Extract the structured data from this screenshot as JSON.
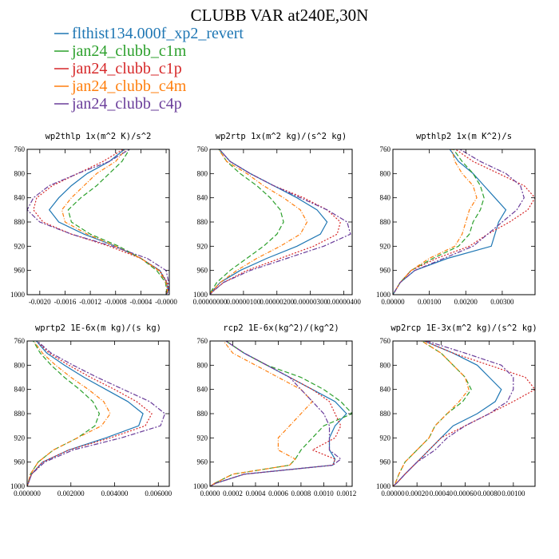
{
  "figure": {
    "title": "CLUBB VAR at240E,30N"
  },
  "colors": {
    "flthist134.000f_xp2_revert": "#1f77b4",
    "jan24_clubb_c1m": "#2ca02c",
    "jan24_clubb_c1p": "#d62728",
    "jan24_clubb_c4m": "#ff7f0e",
    "jan24_clubb_c4p": "#6a3d9a"
  },
  "legend": [
    {
      "name": "flthist134.000f_xp2_revert",
      "color": "#1f77b4"
    },
    {
      "name": "jan24_clubb_c1m",
      "color": "#2ca02c"
    },
    {
      "name": "jan24_clubb_c1p",
      "color": "#d62728"
    },
    {
      "name": "jan24_clubb_c4m",
      "color": "#ff7f0e"
    },
    {
      "name": "jan24_clubb_c4p",
      "color": "#6a3d9a"
    }
  ],
  "chart_data": [
    {
      "type": "line",
      "title": "wp2thlp   1x(m^2 K)/s^2",
      "y_axis": "pressure (reversed)",
      "ylim": [
        760,
        1000
      ],
      "yticks": [
        760,
        800,
        840,
        880,
        920,
        960,
        1000
      ],
      "xlim": [
        -0.0022,
        5e-05
      ],
      "xticks": [
        -0.002,
        -0.0016,
        -0.0012,
        -0.0008,
        -0.0004,
        0.0
      ],
      "xtick_labels": [
        "-0.0020",
        "-0.0016",
        "-0.0012",
        "-0.0008",
        "-0.0004",
        "-0.0000"
      ],
      "y": [
        755,
        780,
        800,
        820,
        840,
        860,
        880,
        900,
        920,
        940,
        960,
        980,
        995,
        1000
      ],
      "series": [
        {
          "name": "flthist134.000f_xp2_revert",
          "values": [
            -0.0006,
            -0.0009,
            -0.00125,
            -0.0015,
            -0.0017,
            -0.00185,
            -0.0017,
            -0.0013,
            -0.0008,
            -0.0004,
            -0.0001,
            1e-05,
            3e-05,
            0.0
          ]
        },
        {
          "name": "jan24_clubb_c1m",
          "values": [
            -0.00055,
            -0.0007,
            -0.0009,
            -0.0011,
            -0.00135,
            -0.00155,
            -0.0015,
            -0.0012,
            -0.00075,
            -0.0004,
            -0.00015,
            -1e-05,
            1e-05,
            0.0
          ]
        },
        {
          "name": "jan24_clubb_c1p",
          "values": [
            -0.0006,
            -0.001,
            -0.0014,
            -0.0018,
            -0.00205,
            -0.0021,
            -0.00195,
            -0.0015,
            -0.0009,
            -0.0004,
            -0.0001,
            2e-05,
            3e-05,
            0.0
          ]
        },
        {
          "name": "jan24_clubb_c4m",
          "values": [
            -0.0006,
            -0.0008,
            -0.0011,
            -0.0013,
            -0.0015,
            -0.00165,
            -0.0016,
            -0.00125,
            -0.0008,
            -0.0004,
            -0.00012,
            0.0,
            2e-05,
            0.0
          ]
        },
        {
          "name": "jan24_clubb_c4p",
          "values": [
            -0.0005,
            -0.0009,
            -0.0014,
            -0.00185,
            -0.0021,
            -0.0022,
            -0.002,
            -0.0015,
            -0.00085,
            -0.0003,
            0.0,
            4e-05,
            4e-05,
            0.0
          ]
        }
      ]
    },
    {
      "type": "line",
      "title": "wp2rtp   1x(m^2 kg)/(s^2 kg)",
      "y_axis": "pressure (reversed)",
      "ylim": [
        760,
        1000
      ],
      "yticks": [
        760,
        800,
        840,
        880,
        920,
        960,
        1000
      ],
      "xlim": [
        0.0,
        4.25e-06
      ],
      "xticks": [
        0.0,
        1e-06,
        2e-06,
        3e-06,
        4e-06
      ],
      "xtick_labels": [
        "0.00000000",
        "0.00000100",
        "0.00000200",
        "0.00000300",
        "0.00000400"
      ],
      "y": [
        755,
        780,
        800,
        820,
        840,
        860,
        880,
        900,
        920,
        940,
        960,
        980,
        995,
        1000
      ],
      "series": [
        {
          "name": "flthist134.000f_xp2_revert",
          "values": [
            2e-07,
            6e-07,
            1.2e-06,
            1.9e-06,
            2.6e-06,
            3.2e-06,
            3.5e-06,
            3.3e-06,
            2.6e-06,
            1.7e-06,
            9e-07,
            3e-07,
            5e-08,
            0.0
          ]
        },
        {
          "name": "jan24_clubb_c1m",
          "values": [
            2e-07,
            5e-07,
            9e-07,
            1.4e-06,
            1.8e-06,
            2.1e-06,
            2.2e-06,
            2e-06,
            1.6e-06,
            1.1e-06,
            6e-07,
            2e-07,
            3e-08,
            0.0
          ]
        },
        {
          "name": "jan24_clubb_c1p",
          "values": [
            2e-07,
            6e-07,
            1.2e-06,
            1.9e-06,
            2.8e-06,
            3.5e-06,
            3.9e-06,
            3.8e-06,
            3.1e-06,
            2.1e-06,
            1.1e-06,
            4e-07,
            7e-08,
            0.0
          ]
        },
        {
          "name": "jan24_clubb_c4m",
          "values": [
            2e-07,
            5e-07,
            1.1e-06,
            1.6e-06,
            2.2e-06,
            2.7e-06,
            2.9e-06,
            2.7e-06,
            2.1e-06,
            1.4e-06,
            8e-07,
            3e-07,
            5e-08,
            0.0
          ]
        },
        {
          "name": "jan24_clubb_c4p",
          "values": [
            2e-07,
            6e-07,
            1.2e-06,
            1.9e-06,
            2.7e-06,
            3.5e-06,
            4.1e-06,
            4.2e-06,
            3.4e-06,
            2.3e-06,
            1.2e-06,
            4e-07,
            8e-08,
            0.0
          ]
        }
      ]
    },
    {
      "type": "line",
      "title": "wpthlp2   1x(m K^2)/s",
      "y_axis": "pressure (reversed)",
      "ylim": [
        760,
        1000
      ],
      "yticks": [
        760,
        800,
        840,
        880,
        920,
        960,
        1000
      ],
      "xlim": [
        0.0,
        0.0039
      ],
      "xticks": [
        0.0,
        0.001,
        0.002,
        0.003
      ],
      "xtick_labels": [
        "0.00000",
        "0.00100",
        "0.00200",
        "0.00300"
      ],
      "y": [
        755,
        780,
        800,
        820,
        840,
        860,
        880,
        900,
        920,
        940,
        960,
        980,
        995,
        1000
      ],
      "series": [
        {
          "name": "flthist134.000f_xp2_revert",
          "values": [
            0.0015,
            0.0018,
            0.0022,
            0.0025,
            0.0028,
            0.0031,
            0.0029,
            0.0028,
            0.0027,
            0.0015,
            0.0006,
            0.0002,
            5e-05,
            0.0
          ]
        },
        {
          "name": "jan24_clubb_c1m",
          "values": [
            0.0016,
            0.0019,
            0.0022,
            0.0024,
            0.0025,
            0.0024,
            0.0022,
            0.0021,
            0.0018,
            0.0011,
            0.0005,
            0.0002,
            5e-05,
            0.0
          ]
        },
        {
          "name": "jan24_clubb_c1p",
          "values": [
            0.0016,
            0.0022,
            0.0029,
            0.0036,
            0.0039,
            0.0037,
            0.0032,
            0.0026,
            0.0021,
            0.0012,
            0.0005,
            0.0002,
            5e-05,
            0.0
          ]
        },
        {
          "name": "jan24_clubb_c4m",
          "values": [
            0.0016,
            0.0017,
            0.0019,
            0.0022,
            0.0023,
            0.0021,
            0.002,
            0.0019,
            0.0017,
            0.001,
            0.0005,
            0.0002,
            5e-05,
            0.0
          ]
        },
        {
          "name": "jan24_clubb_c4p",
          "values": [
            0.0017,
            0.0024,
            0.0031,
            0.0035,
            0.0036,
            0.0034,
            0.003,
            0.0026,
            0.0022,
            0.0014,
            0.0006,
            0.0002,
            5e-05,
            0.0
          ]
        }
      ]
    },
    {
      "type": "line",
      "title": "wprtp2   1E-6x(m kg)/(s kg)",
      "y_axis": "pressure (reversed)",
      "ylim": [
        760,
        1000
      ],
      "yticks": [
        760,
        800,
        840,
        880,
        920,
        960,
        1000
      ],
      "xlim": [
        0.0,
        0.0065
      ],
      "xticks": [
        0.0,
        0.002,
        0.004,
        0.006
      ],
      "xtick_labels": [
        "0.000000",
        "0.002000",
        "0.004000",
        "0.006000"
      ],
      "y": [
        755,
        780,
        800,
        820,
        840,
        860,
        880,
        900,
        920,
        940,
        960,
        980,
        995,
        1000
      ],
      "series": [
        {
          "name": "flthist134.000f_xp2_revert",
          "values": [
            0.0003,
            0.0009,
            0.0017,
            0.0026,
            0.0036,
            0.0046,
            0.0053,
            0.0051,
            0.0036,
            0.0019,
            0.0007,
            0.0002,
            5e-05,
            0.0
          ]
        },
        {
          "name": "jan24_clubb_c1m",
          "values": [
            0.0002,
            0.0006,
            0.0011,
            0.0017,
            0.0024,
            0.003,
            0.0033,
            0.0031,
            0.0023,
            0.0012,
            0.0005,
            0.00015,
            4e-05,
            0.0
          ]
        },
        {
          "name": "jan24_clubb_c1p",
          "values": [
            0.0003,
            0.001,
            0.0019,
            0.0029,
            0.004,
            0.005,
            0.0057,
            0.0054,
            0.0038,
            0.0019,
            0.0007,
            0.0002,
            5e-05,
            0.0
          ]
        },
        {
          "name": "jan24_clubb_c4m",
          "values": [
            0.0002,
            0.0007,
            0.0013,
            0.002,
            0.0028,
            0.0035,
            0.0038,
            0.0034,
            0.0023,
            0.0012,
            0.0005,
            0.00015,
            4e-05,
            0.0
          ]
        },
        {
          "name": "jan24_clubb_c4p",
          "values": [
            0.0003,
            0.0011,
            0.0021,
            0.0032,
            0.0044,
            0.0056,
            0.0063,
            0.0061,
            0.0043,
            0.0021,
            0.0008,
            0.0002,
            5e-05,
            0.0
          ]
        }
      ]
    },
    {
      "type": "line",
      "title": "rcp2   1E-6x(kg^2)/(kg^2)",
      "y_axis": "pressure (reversed)",
      "ylim": [
        760,
        1000
      ],
      "yticks": [
        760,
        800,
        840,
        880,
        920,
        960,
        1000
      ],
      "xlim": [
        0.0,
        0.00125
      ],
      "xticks": [
        0.0,
        0.0002,
        0.0004,
        0.0006,
        0.0008,
        0.001,
        0.0012
      ],
      "xtick_labels": [
        "0.0000",
        "0.0002",
        "0.0004",
        "0.0006",
        "0.0008",
        "0.0010",
        "0.0012"
      ],
      "y": [
        755,
        780,
        800,
        820,
        840,
        860,
        880,
        900,
        920,
        940,
        955,
        965,
        980,
        995,
        1000
      ],
      "series": [
        {
          "name": "flthist134.000f_xp2_revert",
          "values": [
            0.0001,
            0.0003,
            0.0005,
            0.0007,
            0.0009,
            0.0011,
            0.0012,
            0.0011,
            0.00105,
            0.00105,
            0.0011,
            0.00108,
            0.0003,
            5e-05,
            0.0
          ]
        },
        {
          "name": "jan24_clubb_c1m",
          "values": [
            0.0001,
            0.0003,
            0.0005,
            0.0008,
            0.001,
            0.00115,
            0.00125,
            0.001,
            0.0009,
            0.0008,
            0.00075,
            0.0007,
            0.0002,
            4e-05,
            0.0
          ]
        },
        {
          "name": "jan24_clubb_c1p",
          "values": [
            0.0001,
            0.0003,
            0.0005,
            0.0007,
            0.0009,
            0.00105,
            0.0011,
            0.00115,
            0.0011,
            0.0009,
            0.0011,
            0.00108,
            0.0003,
            5e-05,
            0.0
          ]
        },
        {
          "name": "jan24_clubb_c4m",
          "values": [
            0.0001,
            0.0002,
            0.0004,
            0.0006,
            0.0008,
            0.0009,
            0.0008,
            0.0007,
            0.0006,
            0.0006,
            0.00075,
            0.0007,
            0.0002,
            4e-05,
            0.0
          ]
        },
        {
          "name": "jan24_clubb_c4p",
          "values": [
            0.0001,
            0.0003,
            0.0005,
            0.0007,
            0.0008,
            0.0009,
            0.001,
            0.00105,
            0.00105,
            0.00105,
            0.00115,
            0.00108,
            0.0003,
            5e-05,
            0.0
          ]
        }
      ]
    },
    {
      "type": "line",
      "title": "wp2rcp   1E-3x(m^2 kg)/(s^2 kg)",
      "y_axis": "pressure (reversed)",
      "ylim": [
        760,
        1000
      ],
      "yticks": [
        760,
        800,
        840,
        880,
        920,
        960,
        1000
      ],
      "xlim": [
        0.0,
        0.00118
      ],
      "xticks": [
        0.0,
        0.0002,
        0.0004,
        0.0006,
        0.0008,
        0.001
      ],
      "xtick_labels": [
        "0.00000",
        "0.00020",
        "0.00040",
        "0.00060",
        "0.00080",
        "0.00100"
      ],
      "y": [
        755,
        780,
        800,
        820,
        840,
        860,
        880,
        900,
        920,
        940,
        960,
        980,
        995,
        1000
      ],
      "series": [
        {
          "name": "flthist134.000f_xp2_revert",
          "values": [
            0.0002,
            0.0005,
            0.0007,
            0.0008,
            0.0009,
            0.00085,
            0.0007,
            0.0005,
            0.0004,
            0.0003,
            0.0002,
            0.0001,
            3e-05,
            0.0
          ]
        },
        {
          "name": "jan24_clubb_c1m",
          "values": [
            0.0002,
            0.0004,
            0.0005,
            0.0006,
            0.00065,
            0.00058,
            0.00045,
            0.00035,
            0.0003,
            0.0002,
            0.0001,
            5e-05,
            2e-05,
            0.0
          ]
        },
        {
          "name": "jan24_clubb_c1p",
          "values": [
            0.0002,
            0.0005,
            0.0008,
            0.0011,
            0.00118,
            0.001,
            0.0008,
            0.0006,
            0.0004,
            0.0003,
            0.0002,
            0.0001,
            3e-05,
            0.0
          ]
        },
        {
          "name": "jan24_clubb_c4m",
          "values": [
            0.0002,
            0.0004,
            0.0005,
            0.0006,
            0.00063,
            0.00055,
            0.00045,
            0.00035,
            0.0003,
            0.0002,
            0.0001,
            5e-05,
            2e-05,
            0.0
          ]
        },
        {
          "name": "jan24_clubb_c4p",
          "values": [
            0.0002,
            0.0006,
            0.0009,
            0.001,
            0.001,
            0.00095,
            0.0008,
            0.0006,
            0.00045,
            0.00035,
            0.0002,
            0.0001,
            3e-05,
            0.0
          ]
        }
      ]
    }
  ]
}
